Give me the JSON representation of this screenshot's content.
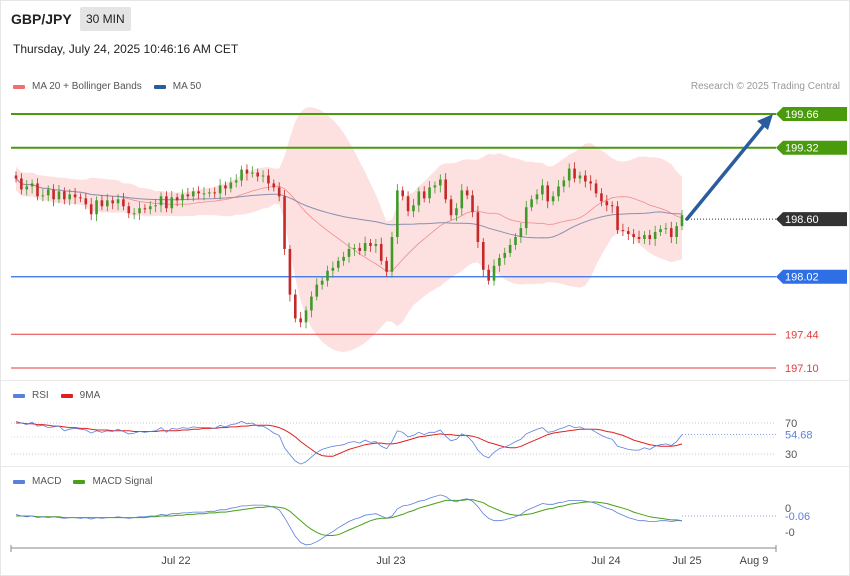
{
  "header": {
    "symbol": "GBP/JPY",
    "timeframe": "30 MIN",
    "datetime": "Thursday, July 24, 2025 10:46:16 AM CET",
    "credit": "Research © 2025 Trading Central"
  },
  "colors": {
    "resistance": "#4a9a0e",
    "current": "#333333",
    "support_blue": "#2e6fe6",
    "support_red": "#e33b3b",
    "arrow": "#2b5c9e",
    "bollinger_fill": "#fde0e0",
    "ma20": "#f28b8b",
    "ma50": "#8a8fb0",
    "up_candle": "#3f9a2a",
    "down_candle": "#c62828",
    "rsi": "#5b7fdc",
    "rsi_ma": "#e02020",
    "macd": "#5b7fdc",
    "macd_signal": "#4aa017"
  },
  "chart_data": [
    {
      "type": "candlestick",
      "legend": [
        {
          "name": "MA 20 + Bollinger Bands",
          "color": "#f07070"
        },
        {
          "name": "MA 50",
          "color": "#2b5c9e"
        }
      ],
      "x_ticks": [
        "Jul 22",
        "Jul 23",
        "Jul 24",
        "Jul 25",
        "Aug 9"
      ],
      "ylim": [
        197.0,
        200.0
      ],
      "levels": [
        {
          "value": 199.66,
          "label": "199.66",
          "style": "resistance"
        },
        {
          "value": 199.32,
          "label": "199.32",
          "style": "resistance"
        },
        {
          "value": 198.6,
          "label": "198.60",
          "style": "current"
        },
        {
          "value": 198.02,
          "label": "198.02",
          "style": "support_blue"
        },
        {
          "value": 197.44,
          "label": "197.44",
          "style": "support_red"
        },
        {
          "value": 197.1,
          "label": "197.10",
          "style": "support_red"
        }
      ],
      "close": [
        199.01,
        198.9,
        198.93,
        198.96,
        198.83,
        198.84,
        198.9,
        198.8,
        198.88,
        198.8,
        198.85,
        198.82,
        198.81,
        198.75,
        198.65,
        198.79,
        198.73,
        198.79,
        198.76,
        198.8,
        198.73,
        198.66,
        198.66,
        198.71,
        198.7,
        198.73,
        198.74,
        198.83,
        198.71,
        198.82,
        198.79,
        198.85,
        198.83,
        198.88,
        198.86,
        198.86,
        198.87,
        198.86,
        198.94,
        198.91,
        198.97,
        198.99,
        199.1,
        199.06,
        199.07,
        199.03,
        199.04,
        198.96,
        198.92,
        198.83,
        198.3,
        197.84,
        197.6,
        197.56,
        197.68,
        197.82,
        197.94,
        197.98,
        198.08,
        198.11,
        198.18,
        198.22,
        198.3,
        198.31,
        198.28,
        198.36,
        198.33,
        198.35,
        198.18,
        198.07,
        198.42,
        198.89,
        198.83,
        198.68,
        198.74,
        198.88,
        198.81,
        198.92,
        198.94,
        199.0,
        198.8,
        198.64,
        198.71,
        198.89,
        198.84,
        198.67,
        198.37,
        198.09,
        197.98,
        198.13,
        198.21,
        198.26,
        198.34,
        198.42,
        198.51,
        198.72,
        198.8,
        198.85,
        198.94,
        198.78,
        198.83,
        198.93,
        198.99,
        199.11,
        199.01,
        199.04,
        198.98,
        198.96,
        198.86,
        198.78,
        198.74,
        198.73,
        198.49,
        198.48,
        198.45,
        198.42,
        198.4,
        198.44,
        198.4,
        198.47,
        198.5,
        198.51,
        198.42,
        198.53,
        198.64
      ]
    },
    {
      "type": "line",
      "legend": [
        {
          "name": "RSI",
          "color": "#5b7fdc"
        },
        {
          "name": "9MA",
          "color": "#e02020"
        }
      ],
      "y_ticks": [
        70,
        30
      ],
      "current": "54.68",
      "series": [
        {
          "name": "RSI",
          "values": [
            72,
            70,
            68,
            71,
            66,
            67,
            64,
            65,
            66,
            60,
            62,
            63,
            62,
            61,
            57,
            60,
            58,
            60,
            59,
            62,
            59,
            56,
            57,
            59,
            58,
            59,
            60,
            64,
            58,
            63,
            62,
            64,
            63,
            65,
            64,
            64,
            64,
            63,
            67,
            65,
            68,
            69,
            72,
            69,
            70,
            66,
            66,
            62,
            57,
            54,
            38,
            29,
            21,
            17,
            20,
            26,
            32,
            36,
            38,
            40,
            41,
            42,
            45,
            46,
            44,
            48,
            45,
            46,
            40,
            37,
            46,
            60,
            58,
            52,
            54,
            58,
            55,
            58,
            58,
            61,
            53,
            47,
            49,
            56,
            53,
            46,
            35,
            28,
            25,
            32,
            37,
            39,
            42,
            46,
            49,
            56,
            59,
            62,
            64,
            58,
            59,
            62,
            64,
            67,
            64,
            65,
            62,
            62,
            58,
            54,
            51,
            49,
            40,
            38,
            36,
            35,
            35,
            38,
            36,
            40,
            42,
            43,
            41,
            46,
            55
          ]
        },
        {
          "name": "9MA",
          "values": [
            70,
            70,
            69,
            69,
            68,
            68,
            67,
            66,
            66,
            65,
            64,
            64,
            63,
            63,
            62,
            61,
            61,
            61,
            60,
            60,
            60,
            60,
            59,
            59,
            59,
            59,
            59,
            60,
            60,
            60,
            60,
            61,
            61,
            62,
            62,
            63,
            63,
            63,
            64,
            64,
            65,
            65,
            66,
            66,
            67,
            67,
            67,
            67,
            66,
            64,
            61,
            57,
            52,
            46,
            41,
            36,
            31,
            28,
            27,
            27,
            30,
            33,
            36,
            38,
            40,
            42,
            43,
            44,
            44,
            43,
            43,
            44,
            46,
            48,
            50,
            52,
            53,
            54,
            55,
            56,
            55,
            55,
            54,
            54,
            54,
            53,
            51,
            48,
            45,
            43,
            41,
            39,
            38,
            38,
            40,
            43,
            46,
            49,
            52,
            55,
            57,
            58,
            59,
            60,
            61,
            62,
            62,
            62,
            62,
            61,
            59,
            58,
            56,
            54,
            51,
            48,
            46,
            44,
            42,
            41,
            40,
            40,
            40,
            41,
            43
          ]
        }
      ]
    },
    {
      "type": "line",
      "legend": [
        {
          "name": "MACD",
          "color": "#5b7fdc"
        },
        {
          "name": "MACD Signal",
          "color": "#4aa017"
        }
      ],
      "y_ticks": [
        0,
        0
      ],
      "y_tick_labels": [
        "0",
        "-0"
      ],
      "current": "-0.06",
      "series": [
        {
          "name": "MACD",
          "values": [
            0.02,
            0.0,
            -0.01,
            0.0,
            -0.02,
            -0.01,
            -0.02,
            -0.01,
            -0.02,
            -0.03,
            -0.02,
            -0.02,
            -0.03,
            -0.02,
            -0.04,
            -0.02,
            -0.03,
            -0.02,
            -0.02,
            -0.01,
            -0.02,
            -0.03,
            -0.02,
            -0.01,
            -0.01,
            0.0,
            0.0,
            0.02,
            0.01,
            0.03,
            0.03,
            0.04,
            0.04,
            0.05,
            0.05,
            0.05,
            0.06,
            0.06,
            0.08,
            0.08,
            0.1,
            0.11,
            0.13,
            0.13,
            0.14,
            0.14,
            0.14,
            0.13,
            0.11,
            0.08,
            -0.02,
            -0.14,
            -0.26,
            -0.34,
            -0.37,
            -0.36,
            -0.33,
            -0.29,
            -0.24,
            -0.2,
            -0.15,
            -0.11,
            -0.07,
            -0.04,
            -0.02,
            0.01,
            0.02,
            0.03,
            0.0,
            -0.03,
            0.0,
            0.09,
            0.13,
            0.14,
            0.16,
            0.19,
            0.2,
            0.23,
            0.25,
            0.27,
            0.25,
            0.2,
            0.18,
            0.21,
            0.22,
            0.19,
            0.12,
            0.03,
            -0.03,
            -0.06,
            -0.06,
            -0.05,
            -0.03,
            -0.01,
            0.02,
            0.07,
            0.1,
            0.13,
            0.16,
            0.15,
            0.15,
            0.17,
            0.18,
            0.2,
            0.2,
            0.2,
            0.19,
            0.18,
            0.16,
            0.13,
            0.1,
            0.08,
            0.04,
            0.01,
            -0.02,
            -0.04,
            -0.06,
            -0.06,
            -0.07,
            -0.07,
            -0.06,
            -0.06,
            -0.07,
            -0.06,
            -0.06
          ]
        },
        {
          "name": "MACD Signal",
          "values": [
            0.0,
            0.0,
            0.0,
            0.0,
            -0.01,
            -0.01,
            -0.01,
            -0.01,
            -0.01,
            -0.02,
            -0.02,
            -0.02,
            -0.02,
            -0.02,
            -0.02,
            -0.02,
            -0.02,
            -0.02,
            -0.02,
            -0.02,
            -0.02,
            -0.02,
            -0.02,
            -0.02,
            -0.02,
            -0.01,
            -0.01,
            0.0,
            0.0,
            0.0,
            0.01,
            0.01,
            0.02,
            0.02,
            0.03,
            0.03,
            0.04,
            0.04,
            0.05,
            0.05,
            0.06,
            0.07,
            0.08,
            0.09,
            0.1,
            0.11,
            0.11,
            0.12,
            0.12,
            0.11,
            0.1,
            0.06,
            0.0,
            -0.06,
            -0.12,
            -0.17,
            -0.21,
            -0.24,
            -0.25,
            -0.25,
            -0.24,
            -0.21,
            -0.18,
            -0.15,
            -0.12,
            -0.09,
            -0.06,
            -0.04,
            -0.03,
            -0.03,
            -0.02,
            0.0,
            0.02,
            0.05,
            0.07,
            0.1,
            0.12,
            0.14,
            0.16,
            0.18,
            0.2,
            0.2,
            0.2,
            0.2,
            0.21,
            0.21,
            0.19,
            0.17,
            0.13,
            0.1,
            0.07,
            0.04,
            0.02,
            0.01,
            0.01,
            0.02,
            0.03,
            0.05,
            0.07,
            0.09,
            0.1,
            0.12,
            0.13,
            0.15,
            0.16,
            0.17,
            0.18,
            0.18,
            0.18,
            0.17,
            0.16,
            0.14,
            0.12,
            0.1,
            0.08,
            0.05,
            0.03,
            0.01,
            -0.01,
            -0.02,
            -0.03,
            -0.04,
            -0.05,
            -0.05,
            -0.06
          ]
        }
      ]
    }
  ]
}
